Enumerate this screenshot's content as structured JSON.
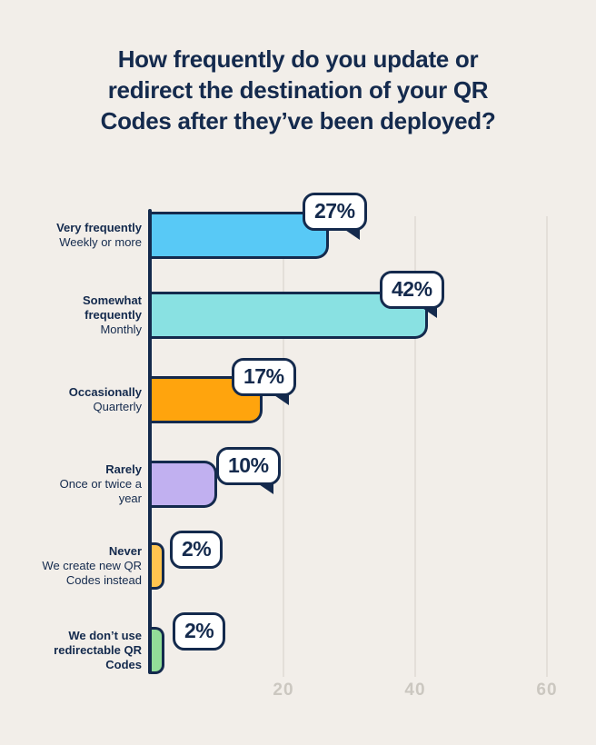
{
  "background": "#F2EEE9",
  "accent_navy": "#142A4D",
  "grid_color": "#E4DFD9",
  "tick_color": "#CBC7C0",
  "badge_bg": "#FFFFFF",
  "chart_data": {
    "type": "bar",
    "orientation": "horizontal",
    "title": "How frequently do you update or redirect the destination of your QR Codes after they’ve been deployed?",
    "title_lines": [
      "How frequently do you update or",
      "redirect the destination of your QR",
      "Codes after they’ve been deployed?"
    ],
    "xlabel": "",
    "ylabel": "",
    "x_ticks": [
      20,
      40,
      60
    ],
    "xlim": [
      0,
      63
    ],
    "grid": true,
    "legend": "none",
    "bars": [
      {
        "bold_lines": [
          "Very frequently"
        ],
        "regular_lines": [
          "Weekly or more"
        ],
        "value": 27,
        "label": "27%",
        "color": "#58C9F6"
      },
      {
        "bold_lines": [
          "Somewhat",
          "frequently"
        ],
        "regular_lines": [
          "Monthly"
        ],
        "value": 42,
        "label": "42%",
        "color": "#89E1E2"
      },
      {
        "bold_lines": [
          "Occasionally"
        ],
        "regular_lines": [
          "Quarterly"
        ],
        "value": 17,
        "label": "17%",
        "color": "#FFA40D"
      },
      {
        "bold_lines": [
          "Rarely"
        ],
        "regular_lines": [
          "Once or twice a",
          "year"
        ],
        "value": 10,
        "label": "10%",
        "color": "#C1B0F0"
      },
      {
        "bold_lines": [
          "Never"
        ],
        "regular_lines": [
          "We create new QR",
          "Codes instead"
        ],
        "value": 2,
        "label": "2%",
        "color": "#FFC44F"
      },
      {
        "bold_lines": [
          "We don’t use",
          "redirectable QR",
          "Codes"
        ],
        "regular_lines": [],
        "value": 2,
        "label": "2%",
        "color": "#92DD98"
      }
    ]
  }
}
